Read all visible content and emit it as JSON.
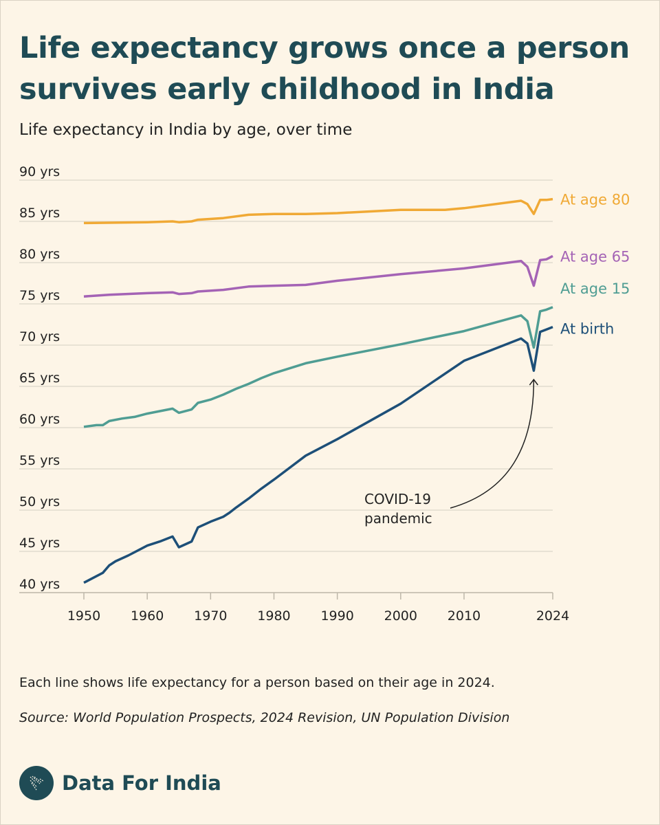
{
  "header": {
    "title": "Life expectancy grows once a person survives early childhood in India",
    "subtitle": "Life expectancy in India by age, over time"
  },
  "footer": {
    "note": "Each line shows life expectancy for a person based on their age in 2024.",
    "source": "Source: World Population Prospects, 2024 Revision, UN Population Division",
    "brand": "Data For India"
  },
  "chart_data": {
    "type": "line",
    "title": "",
    "xlabel": "",
    "ylabel": "",
    "xlim": [
      1950,
      2024
    ],
    "ylim": [
      40,
      90
    ],
    "grid": true,
    "legend": "inline labels at line ends (right)",
    "x_ticks": [
      "1950",
      "1960",
      "1970",
      "1980",
      "1990",
      "2000",
      "2010",
      "2024"
    ],
    "x_tick_values": [
      1950,
      1960,
      1970,
      1980,
      1990,
      2000,
      2010,
      2024
    ],
    "y_ticks": [
      "90 yrs",
      "85 yrs",
      "80 yrs",
      "75 yrs",
      "70 yrs",
      "65 yrs",
      "60 yrs",
      "55 yrs",
      "50 yrs",
      "45 yrs",
      "40 yrs"
    ],
    "y_tick_values": [
      90,
      85,
      80,
      75,
      70,
      65,
      60,
      55,
      50,
      45,
      40
    ],
    "annotation": {
      "text_line1": "COVID-19",
      "text_line2": "pandemic",
      "points_to_year": 2021
    },
    "series": [
      {
        "name": "At age 80",
        "color": "#f0a935",
        "x": [
          1950,
          1960,
          1964,
          1965,
          1967,
          1968,
          1972,
          1976,
          1980,
          1985,
          1990,
          2000,
          2007,
          2010,
          2019,
          2020,
          2021,
          2022,
          2023,
          2024
        ],
        "y": [
          84.8,
          84.9,
          85.0,
          84.9,
          85.0,
          85.2,
          85.4,
          85.8,
          85.9,
          85.9,
          86.0,
          86.4,
          86.4,
          86.6,
          87.5,
          87.1,
          85.9,
          87.6,
          87.6,
          87.7
        ]
      },
      {
        "name": "At age 65",
        "color": "#a463b5",
        "x": [
          1950,
          1954,
          1960,
          1964,
          1965,
          1967,
          1968,
          1972,
          1976,
          1980,
          1985,
          1990,
          2000,
          2010,
          2019,
          2020,
          2021,
          2022,
          2023,
          2024
        ],
        "y": [
          75.9,
          76.1,
          76.3,
          76.4,
          76.2,
          76.3,
          76.5,
          76.7,
          77.1,
          77.2,
          77.3,
          77.8,
          78.6,
          79.3,
          80.2,
          79.5,
          77.2,
          80.3,
          80.4,
          80.8
        ]
      },
      {
        "name": "At age 15",
        "color": "#4f9d93",
        "x": [
          1950,
          1952,
          1953,
          1954,
          1956,
          1958,
          1960,
          1962,
          1964,
          1965,
          1967,
          1968,
          1970,
          1972,
          1974,
          1976,
          1978,
          1980,
          1985,
          1990,
          2000,
          2010,
          2019,
          2020,
          2021,
          2022,
          2023,
          2024
        ],
        "y": [
          60.1,
          60.3,
          60.3,
          60.8,
          61.1,
          61.3,
          61.7,
          62.0,
          62.3,
          61.8,
          62.2,
          63.0,
          63.4,
          64.0,
          64.7,
          65.3,
          66.0,
          66.6,
          67.8,
          68.6,
          70.1,
          71.7,
          73.6,
          72.9,
          69.7,
          74.1,
          74.3,
          74.6
        ]
      },
      {
        "name": "At birth",
        "color": "#1d4f78",
        "x": [
          1950,
          1953,
          1954,
          1955,
          1957,
          1959,
          1960,
          1962,
          1964,
          1965,
          1967,
          1968,
          1970,
          1972,
          1973,
          1974,
          1976,
          1978,
          1980,
          1985,
          1990,
          2000,
          2010,
          2019,
          2020,
          2021,
          2022,
          2023,
          2024
        ],
        "y": [
          41.2,
          42.4,
          43.3,
          43.8,
          44.5,
          45.3,
          45.7,
          46.2,
          46.8,
          45.5,
          46.2,
          47.9,
          48.6,
          49.2,
          49.7,
          50.3,
          51.4,
          52.6,
          53.7,
          56.6,
          58.6,
          62.9,
          68.1,
          70.8,
          70.2,
          66.9,
          71.6,
          71.9,
          72.2
        ]
      }
    ]
  }
}
